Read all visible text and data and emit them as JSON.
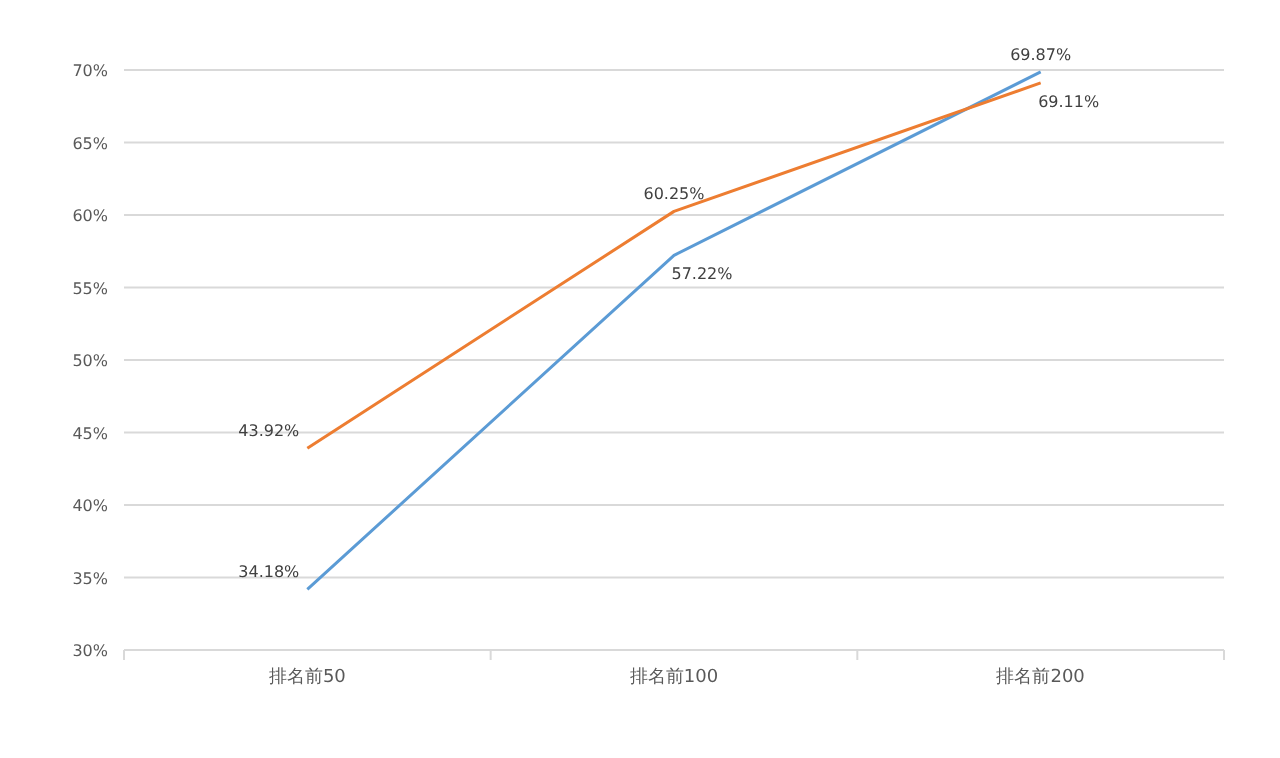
{
  "chart_data": {
    "type": "line",
    "categories": [
      "排名前50",
      "排名前100",
      "排名前200"
    ],
    "series": [
      {
        "color": "#5b9bd5",
        "values": [
          34.18,
          57.22,
          69.87
        ],
        "value_labels": [
          "34.18%",
          "57.22%",
          "69.87%"
        ]
      },
      {
        "color": "#ed7d31",
        "values": [
          43.92,
          60.25,
          69.11
        ],
        "value_labels": [
          "43.92%",
          "60.25%",
          "69.11%"
        ]
      }
    ],
    "ylim": [
      30,
      70
    ],
    "yticks": [
      {
        "value": 30,
        "label": "30%"
      },
      {
        "value": 35,
        "label": "35%"
      },
      {
        "value": 40,
        "label": "40%"
      },
      {
        "value": 45,
        "label": "45%"
      },
      {
        "value": 50,
        "label": "50%"
      },
      {
        "value": 55,
        "label": "55%"
      },
      {
        "value": 60,
        "label": "60%"
      },
      {
        "value": 65,
        "label": "65%"
      },
      {
        "value": 70,
        "label": "70%"
      }
    ],
    "grid": "y",
    "marker": "none",
    "line_style": "solid"
  }
}
